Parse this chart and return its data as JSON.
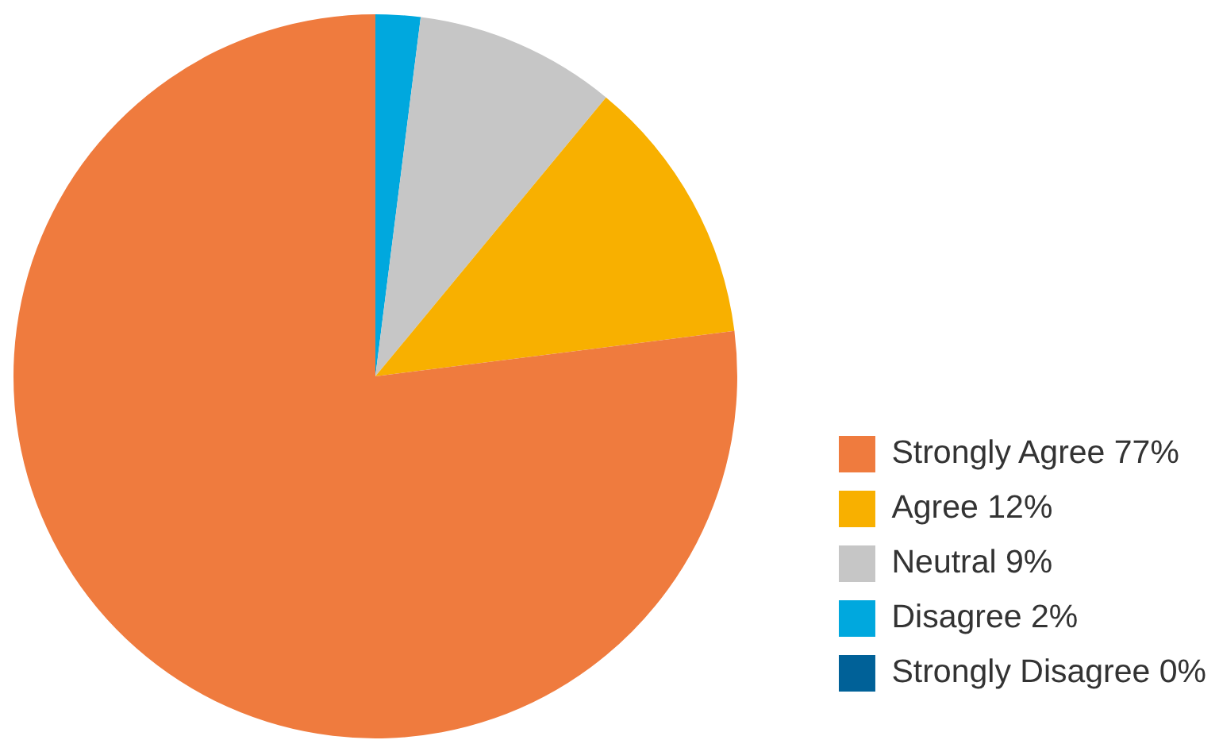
{
  "chart_data": {
    "type": "pie",
    "categories": [
      "Strongly Agree 77%",
      "Agree 12%",
      "Neutral 9%",
      "Disagree 2%",
      "Strongly Disagree 0%"
    ],
    "values": [
      77,
      12,
      9,
      2,
      0
    ],
    "colors": [
      "#ef7b3e",
      "#f8b000",
      "#c6c6c6",
      "#00a8de",
      "#006198"
    ],
    "legend": "bottom right"
  }
}
